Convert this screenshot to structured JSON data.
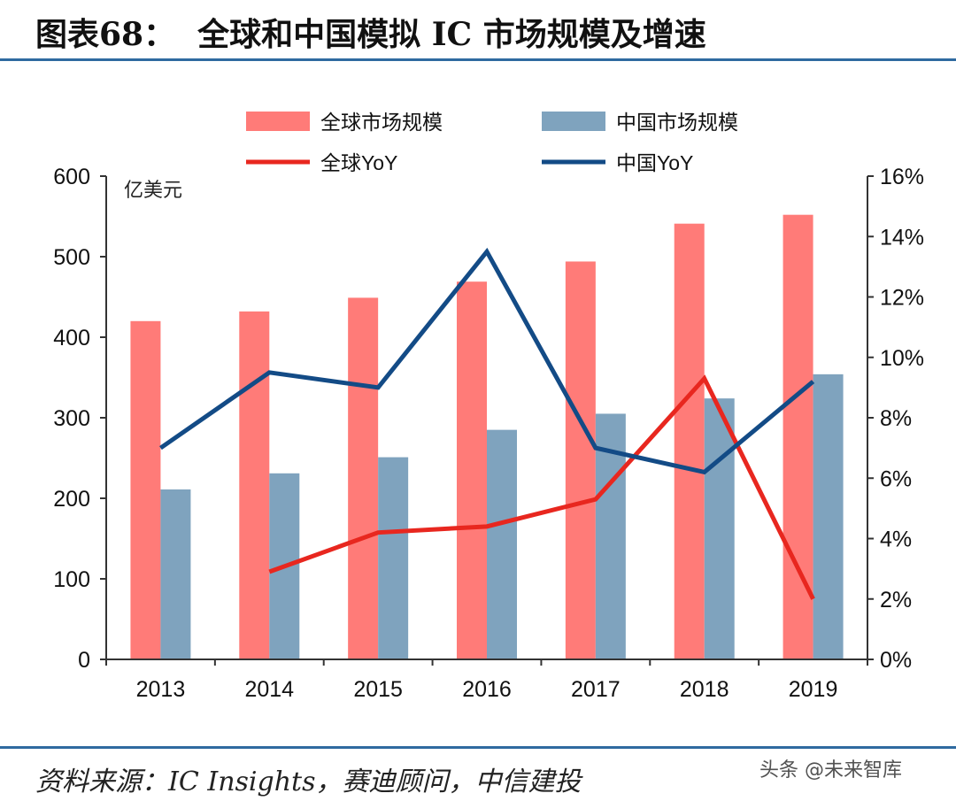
{
  "header": {
    "title": "图表68：  全球和中国模拟 IC 市场规模及增速"
  },
  "footer": {
    "source": "资料来源：IC Insights，赛迪顾问，中信建投",
    "watermark": "头条 @未来智库"
  },
  "chart_data": {
    "type": "bar",
    "title": "",
    "categories": [
      "2013",
      "2014",
      "2015",
      "2016",
      "2017",
      "2018",
      "2019"
    ],
    "unit_label": "亿美元",
    "y_left": {
      "range": [
        0,
        600
      ],
      "ticks": [
        "0",
        "100",
        "200",
        "300",
        "400",
        "500",
        "600"
      ]
    },
    "y_right": {
      "range": [
        0,
        16
      ],
      "ticks": [
        "0%",
        "2%",
        "4%",
        "6%",
        "8%",
        "10%",
        "12%",
        "14%",
        "16%"
      ]
    },
    "grid": false,
    "legend_position": "top",
    "series": [
      {
        "name": "全球市场规模",
        "type": "bar",
        "axis": "left",
        "color": "#ff7b78",
        "values": [
          420,
          432,
          449,
          469,
          494,
          541,
          552
        ]
      },
      {
        "name": "中国市场规模",
        "type": "bar",
        "axis": "left",
        "color": "#7fa3be",
        "values": [
          211,
          231,
          251,
          285,
          305,
          324,
          354
        ]
      },
      {
        "name": "全球YoY",
        "type": "line",
        "axis": "right",
        "color": "#e8271f",
        "values": [
          null,
          2.9,
          4.2,
          4.4,
          5.3,
          9.3,
          2.0
        ]
      },
      {
        "name": "中国YoY",
        "type": "line",
        "axis": "right",
        "color": "#134b86",
        "values": [
          7.0,
          9.5,
          9.0,
          13.5,
          7.0,
          6.2,
          9.2
        ]
      }
    ]
  }
}
